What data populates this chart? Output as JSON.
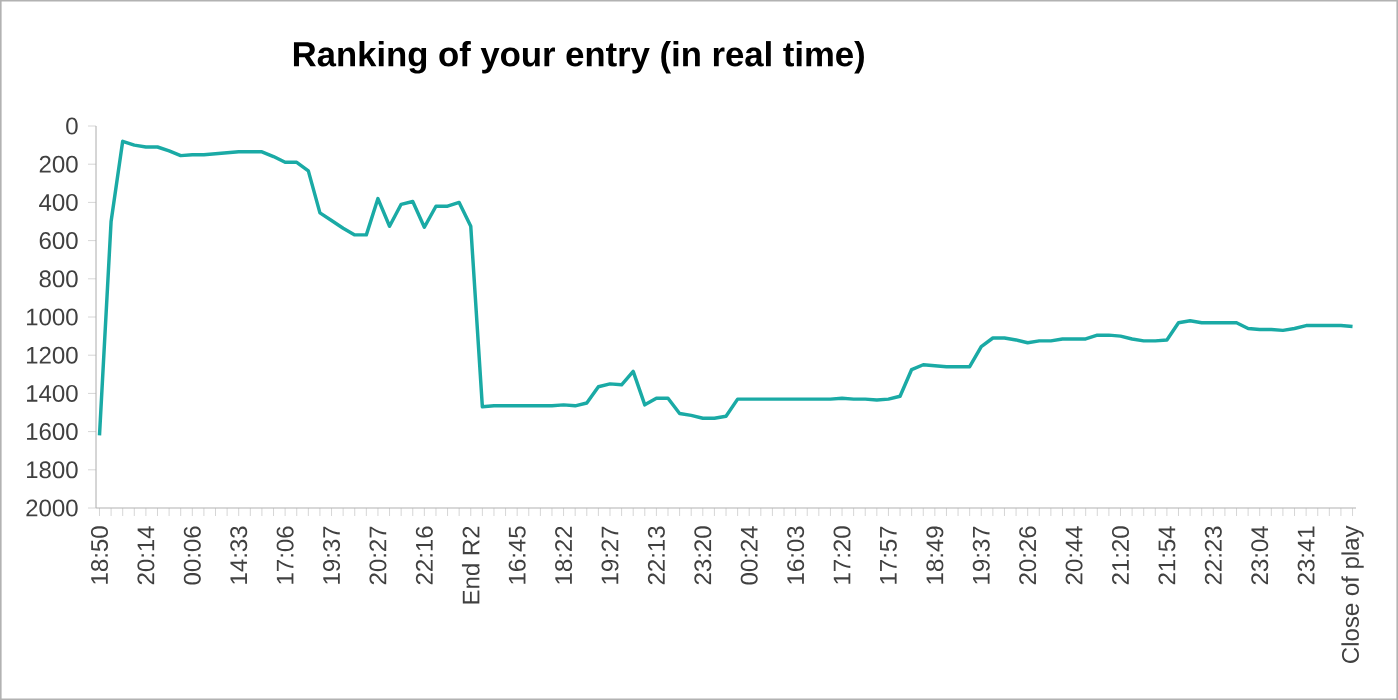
{
  "chart_data": {
    "type": "line",
    "title": "Ranking of your entry (in real time)",
    "categories": [
      "18:50",
      null,
      null,
      null,
      "20:14",
      null,
      null,
      null,
      "00:06",
      null,
      null,
      null,
      "14:33",
      null,
      null,
      null,
      "17:06",
      null,
      null,
      null,
      "19:37",
      null,
      null,
      null,
      "20:27",
      null,
      null,
      null,
      "22:16",
      null,
      null,
      null,
      "End R2",
      null,
      null,
      null,
      "16:45",
      null,
      null,
      null,
      "18:22",
      null,
      null,
      null,
      "19:27",
      null,
      null,
      null,
      "22:13",
      null,
      null,
      null,
      "23:20",
      null,
      null,
      null,
      "00:24",
      null,
      null,
      null,
      "16:03",
      null,
      null,
      null,
      "17:20",
      null,
      null,
      null,
      "17:57",
      null,
      null,
      null,
      "18:49",
      null,
      null,
      null,
      "19:37",
      null,
      null,
      null,
      "20:26",
      null,
      null,
      null,
      "20:44",
      null,
      null,
      null,
      "21:20",
      null,
      null,
      null,
      "21:54",
      null,
      null,
      null,
      "22:23",
      null,
      null,
      null,
      "23:04",
      null,
      null,
      null,
      "23:41",
      null,
      null,
      null,
      "Close of play"
    ],
    "values": [
      1620,
      500,
      80,
      100,
      110,
      110,
      130,
      155,
      150,
      150,
      145,
      140,
      135,
      135,
      135,
      160,
      190,
      190,
      235,
      455,
      495,
      535,
      570,
      570,
      380,
      525,
      410,
      395,
      530,
      420,
      420,
      400,
      525,
      1470,
      1465,
      1465,
      1465,
      1465,
      1465,
      1465,
      1460,
      1465,
      1450,
      1365,
      1350,
      1355,
      1285,
      1460,
      1425,
      1425,
      1505,
      1515,
      1530,
      1530,
      1520,
      1430,
      1430,
      1430,
      1430,
      1430,
      1430,
      1430,
      1430,
      1430,
      1425,
      1430,
      1430,
      1435,
      1430,
      1415,
      1275,
      1250,
      1255,
      1260,
      1260,
      1260,
      1155,
      1110,
      1110,
      1120,
      1135,
      1125,
      1125,
      1115,
      1115,
      1115,
      1095,
      1095,
      1100,
      1115,
      1125,
      1125,
      1120,
      1030,
      1020,
      1030,
      1030,
      1030,
      1030,
      1060,
      1065,
      1065,
      1070,
      1060,
      1045,
      1045,
      1045,
      1045,
      1050
    ],
    "color": "#1aaaa5",
    "ylim": [
      2000,
      0
    ],
    "yticks": [
      0,
      200,
      400,
      600,
      800,
      1000,
      1200,
      1400,
      1600,
      1800,
      2000
    ]
  }
}
